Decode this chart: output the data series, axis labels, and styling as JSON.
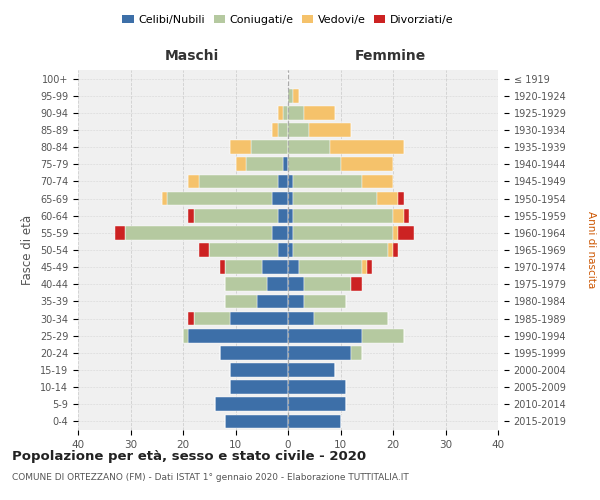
{
  "age_groups": [
    "0-4",
    "5-9",
    "10-14",
    "15-19",
    "20-24",
    "25-29",
    "30-34",
    "35-39",
    "40-44",
    "45-49",
    "50-54",
    "55-59",
    "60-64",
    "65-69",
    "70-74",
    "75-79",
    "80-84",
    "85-89",
    "90-94",
    "95-99",
    "100+"
  ],
  "birth_years": [
    "2015-2019",
    "2010-2014",
    "2005-2009",
    "2000-2004",
    "1995-1999",
    "1990-1994",
    "1985-1989",
    "1980-1984",
    "1975-1979",
    "1970-1974",
    "1965-1969",
    "1960-1964",
    "1955-1959",
    "1950-1954",
    "1945-1949",
    "1940-1944",
    "1935-1939",
    "1930-1934",
    "1925-1929",
    "1920-1924",
    "≤ 1919"
  ],
  "colors": {
    "celibe": "#3d6fa8",
    "coniugato": "#b5c9a0",
    "vedovo": "#f5c26b",
    "divorziato": "#cc2222"
  },
  "maschi": {
    "celibe": [
      12,
      14,
      11,
      11,
      13,
      19,
      11,
      6,
      4,
      5,
      2,
      3,
      2,
      3,
      2,
      1,
      0,
      0,
      0,
      0,
      0
    ],
    "coniugato": [
      0,
      0,
      0,
      0,
      0,
      1,
      7,
      6,
      8,
      7,
      13,
      28,
      16,
      20,
      15,
      7,
      7,
      2,
      1,
      0,
      0
    ],
    "vedovo": [
      0,
      0,
      0,
      0,
      0,
      0,
      0,
      0,
      0,
      0,
      0,
      0,
      0,
      1,
      2,
      2,
      4,
      1,
      1,
      0,
      0
    ],
    "divorziato": [
      0,
      0,
      0,
      0,
      0,
      0,
      1,
      0,
      0,
      1,
      2,
      2,
      1,
      0,
      0,
      0,
      0,
      0,
      0,
      0,
      0
    ]
  },
  "femmine": {
    "nubile": [
      10,
      11,
      11,
      9,
      12,
      14,
      5,
      3,
      3,
      2,
      1,
      1,
      1,
      1,
      1,
      0,
      0,
      0,
      0,
      0,
      0
    ],
    "coniugata": [
      0,
      0,
      0,
      0,
      2,
      8,
      14,
      8,
      9,
      12,
      18,
      19,
      19,
      16,
      13,
      10,
      8,
      4,
      3,
      1,
      0
    ],
    "vedova": [
      0,
      0,
      0,
      0,
      0,
      0,
      0,
      0,
      0,
      1,
      1,
      1,
      2,
      4,
      6,
      10,
      14,
      8,
      6,
      1,
      0
    ],
    "divorziata": [
      0,
      0,
      0,
      0,
      0,
      0,
      0,
      0,
      2,
      1,
      1,
      3,
      1,
      1,
      0,
      0,
      0,
      0,
      0,
      0,
      0
    ]
  },
  "xlim": [
    -40,
    40
  ],
  "xticks": [
    -40,
    -30,
    -20,
    -10,
    0,
    10,
    20,
    30,
    40
  ],
  "xtick_labels": [
    "40",
    "30",
    "20",
    "10",
    "0",
    "10",
    "20",
    "30",
    "40"
  ],
  "title": "Popolazione per età, sesso e stato civile - 2020",
  "subtitle": "COMUNE DI ORTEZZANO (FM) - Dati ISTAT 1° gennaio 2020 - Elaborazione TUTTITALIA.IT",
  "ylabel_left": "Fasce di età",
  "ylabel_right": "Anni di nascita",
  "legend_labels": [
    "Celibi/Nubili",
    "Coniugati/e",
    "Vedovi/e",
    "Divorziati/e"
  ],
  "bg_color": "#f0f0f0",
  "bar_height": 0.8
}
